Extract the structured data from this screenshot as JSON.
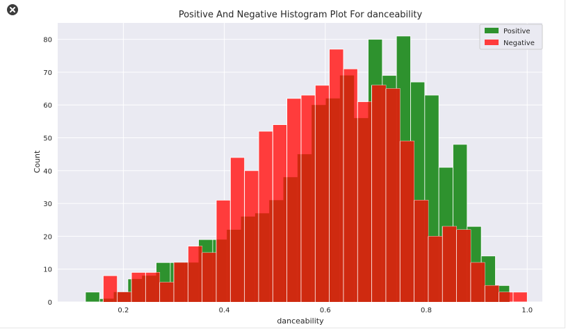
{
  "window": {
    "close_icon": "close-icon"
  },
  "chart_data": {
    "type": "bar",
    "title": "Positive And Negative Histogram Plot For danceability",
    "xlabel": "danceability",
    "ylabel": "Count",
    "xlim": [
      0.07,
      1.03
    ],
    "ylim": [
      0,
      85
    ],
    "xticks": [
      {
        "value": 0.2,
        "label": "0.2"
      },
      {
        "value": 0.4,
        "label": "0.4"
      },
      {
        "value": 0.6,
        "label": "0.6"
      },
      {
        "value": 0.8,
        "label": "0.8"
      },
      {
        "value": 1.0,
        "label": "1.0"
      }
    ],
    "yticks": [
      {
        "value": 0,
        "label": "0"
      },
      {
        "value": 10,
        "label": "10"
      },
      {
        "value": 20,
        "label": "20"
      },
      {
        "value": 30,
        "label": "30"
      },
      {
        "value": 40,
        "label": "40"
      },
      {
        "value": 50,
        "label": "50"
      },
      {
        "value": 60,
        "label": "60"
      },
      {
        "value": 70,
        "label": "70"
      },
      {
        "value": 80,
        "label": "80"
      }
    ],
    "grid": true,
    "legend_position": "top-right",
    "background": "#eaeaf2",
    "overlap_color": "#cf2a10",
    "series": [
      {
        "name": "Positive",
        "color": "#2e922e",
        "bins": [
          {
            "x0": 0.125,
            "x1": 0.153,
            "count": 3
          },
          {
            "x0": 0.153,
            "x1": 0.181,
            "count": 1
          },
          {
            "x0": 0.181,
            "x1": 0.209,
            "count": 3
          },
          {
            "x0": 0.209,
            "x1": 0.237,
            "count": 7
          },
          {
            "x0": 0.237,
            "x1": 0.265,
            "count": 8
          },
          {
            "x0": 0.265,
            "x1": 0.293,
            "count": 12
          },
          {
            "x0": 0.293,
            "x1": 0.321,
            "count": 12
          },
          {
            "x0": 0.321,
            "x1": 0.349,
            "count": 12
          },
          {
            "x0": 0.349,
            "x1": 0.377,
            "count": 19
          },
          {
            "x0": 0.377,
            "x1": 0.405,
            "count": 19
          },
          {
            "x0": 0.405,
            "x1": 0.433,
            "count": 22
          },
          {
            "x0": 0.433,
            "x1": 0.461,
            "count": 26
          },
          {
            "x0": 0.461,
            "x1": 0.489,
            "count": 27
          },
          {
            "x0": 0.489,
            "x1": 0.517,
            "count": 31
          },
          {
            "x0": 0.517,
            "x1": 0.545,
            "count": 38
          },
          {
            "x0": 0.545,
            "x1": 0.573,
            "count": 45
          },
          {
            "x0": 0.573,
            "x1": 0.601,
            "count": 60
          },
          {
            "x0": 0.601,
            "x1": 0.629,
            "count": 62
          },
          {
            "x0": 0.629,
            "x1": 0.657,
            "count": 69
          },
          {
            "x0": 0.657,
            "x1": 0.685,
            "count": 56
          },
          {
            "x0": 0.685,
            "x1": 0.713,
            "count": 80
          },
          {
            "x0": 0.713,
            "x1": 0.741,
            "count": 69
          },
          {
            "x0": 0.741,
            "x1": 0.769,
            "count": 81
          },
          {
            "x0": 0.769,
            "x1": 0.797,
            "count": 67
          },
          {
            "x0": 0.797,
            "x1": 0.825,
            "count": 63
          },
          {
            "x0": 0.825,
            "x1": 0.853,
            "count": 41
          },
          {
            "x0": 0.853,
            "x1": 0.881,
            "count": 48
          },
          {
            "x0": 0.881,
            "x1": 0.909,
            "count": 23
          },
          {
            "x0": 0.909,
            "x1": 0.937,
            "count": 14
          },
          {
            "x0": 0.937,
            "x1": 0.965,
            "count": 5
          }
        ]
      },
      {
        "name": "Negative",
        "color": "#ff3c3c",
        "bins": [
          {
            "x0": 0.16,
            "x1": 0.188,
            "count": 8
          },
          {
            "x0": 0.188,
            "x1": 0.216,
            "count": 3
          },
          {
            "x0": 0.216,
            "x1": 0.244,
            "count": 9
          },
          {
            "x0": 0.244,
            "x1": 0.272,
            "count": 9
          },
          {
            "x0": 0.272,
            "x1": 0.3,
            "count": 6
          },
          {
            "x0": 0.3,
            "x1": 0.328,
            "count": 12
          },
          {
            "x0": 0.328,
            "x1": 0.356,
            "count": 17
          },
          {
            "x0": 0.356,
            "x1": 0.384,
            "count": 15
          },
          {
            "x0": 0.384,
            "x1": 0.412,
            "count": 31
          },
          {
            "x0": 0.412,
            "x1": 0.44,
            "count": 44
          },
          {
            "x0": 0.44,
            "x1": 0.468,
            "count": 40
          },
          {
            "x0": 0.468,
            "x1": 0.496,
            "count": 52
          },
          {
            "x0": 0.496,
            "x1": 0.524,
            "count": 54
          },
          {
            "x0": 0.524,
            "x1": 0.552,
            "count": 62
          },
          {
            "x0": 0.552,
            "x1": 0.58,
            "count": 63
          },
          {
            "x0": 0.58,
            "x1": 0.608,
            "count": 66
          },
          {
            "x0": 0.608,
            "x1": 0.636,
            "count": 77
          },
          {
            "x0": 0.636,
            "x1": 0.664,
            "count": 71
          },
          {
            "x0": 0.664,
            "x1": 0.692,
            "count": 61
          },
          {
            "x0": 0.692,
            "x1": 0.72,
            "count": 66
          },
          {
            "x0": 0.72,
            "x1": 0.748,
            "count": 65
          },
          {
            "x0": 0.748,
            "x1": 0.776,
            "count": 49
          },
          {
            "x0": 0.776,
            "x1": 0.804,
            "count": 31
          },
          {
            "x0": 0.804,
            "x1": 0.832,
            "count": 20
          },
          {
            "x0": 0.832,
            "x1": 0.86,
            "count": 23
          },
          {
            "x0": 0.86,
            "x1": 0.888,
            "count": 22
          },
          {
            "x0": 0.888,
            "x1": 0.916,
            "count": 12
          },
          {
            "x0": 0.916,
            "x1": 0.944,
            "count": 5
          },
          {
            "x0": 0.944,
            "x1": 0.972,
            "count": 3
          },
          {
            "x0": 0.972,
            "x1": 1.0,
            "count": 3
          }
        ]
      }
    ]
  }
}
